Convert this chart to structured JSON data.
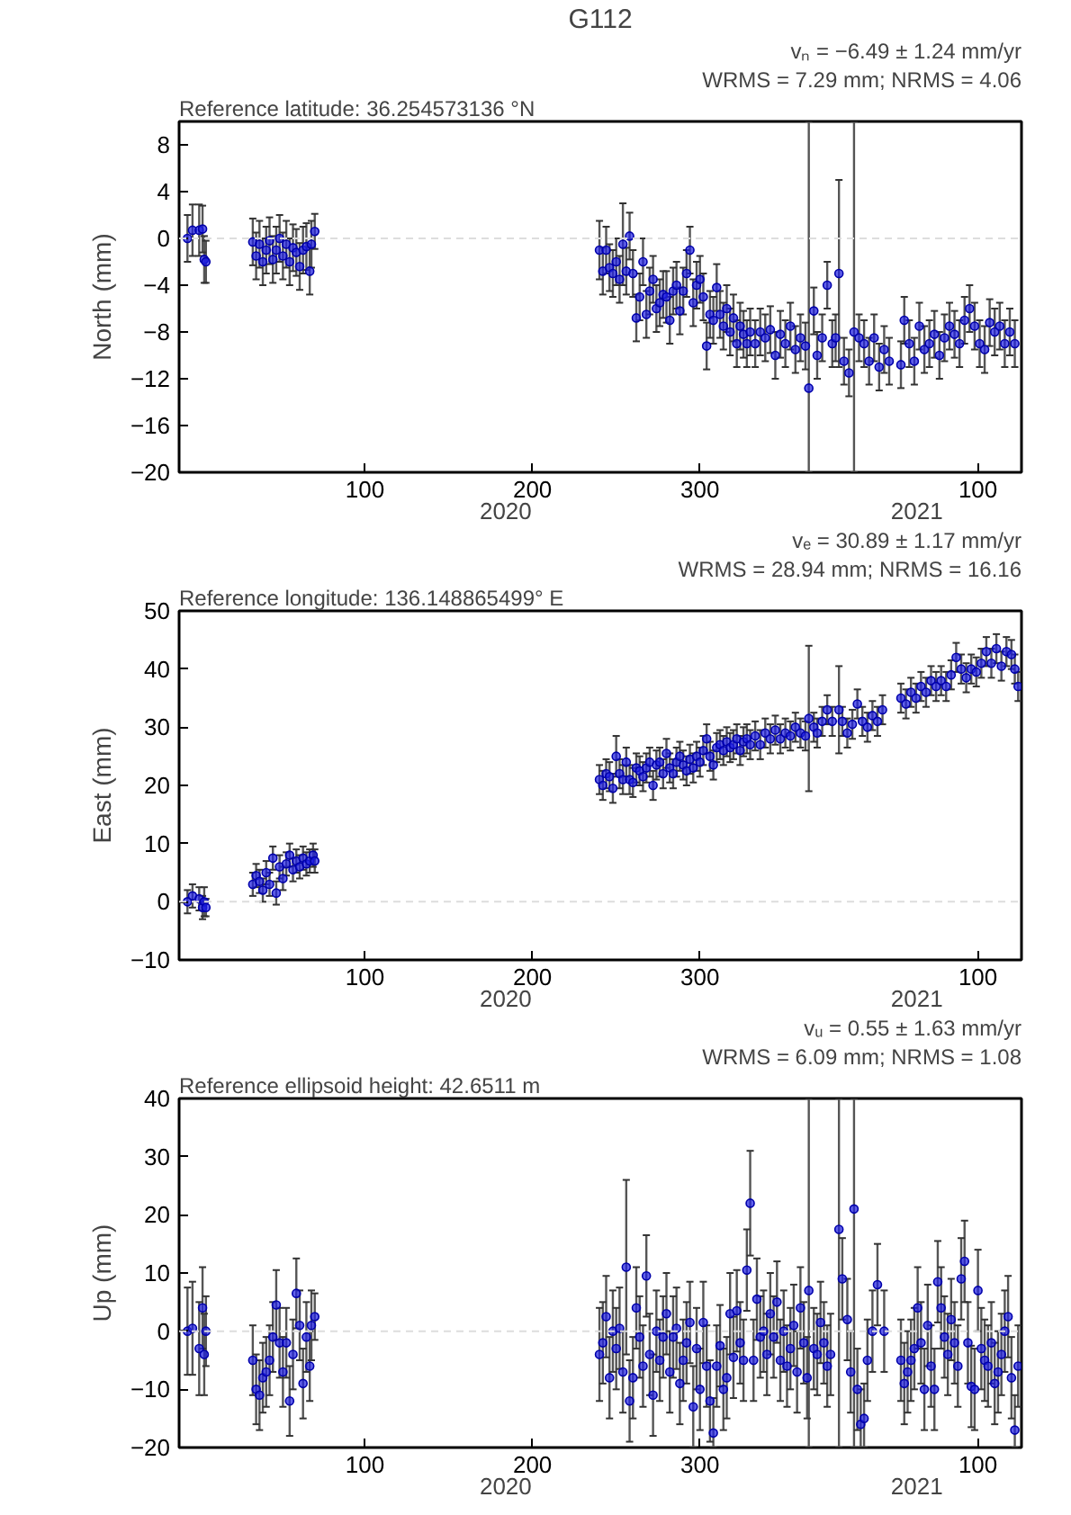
{
  "chart_data": [
    {
      "type": "scatter",
      "title": "G112",
      "ylabel": "North (mm)",
      "color": "#1f1fe6",
      "marker": "circle",
      "grid": false,
      "annotations": [
        "Reference latitude: 36.254573136 °N",
        "vₙ = −6.49 ± 1.24 mm/yr",
        "WRMS = 7.29 mm; NRMS = 4.06",
        "2020",
        "2021"
      ],
      "xlim": [
        "2019-12-20",
        "2021-05-06"
      ],
      "xticks": [
        {
          "value": "2020-04-09",
          "label": "100"
        },
        {
          "value": "2020-07-18",
          "label": "200"
        },
        {
          "value": "2020-10-26",
          "label": "300"
        },
        {
          "value": "2021-04-10",
          "label": "100"
        }
      ],
      "ylim": [
        -20,
        10
      ],
      "yticks": [
        -20,
        -16,
        -12,
        -8,
        -4,
        0,
        4,
        8
      ],
      "ref_lines": [
        {
          "axis": "y",
          "value": 0,
          "color": "#dddddd",
          "line_style": "dashed"
        }
      ],
      "x": [
        "2019-12-25",
        "2019-12-28",
        "2020-01-01",
        "2020-01-03",
        "2020-01-04",
        "2020-01-05",
        "2020-02-02",
        "2020-02-04",
        "2020-02-06",
        "2020-02-08",
        "2020-02-10",
        "2020-02-12",
        "2020-02-14",
        "2020-02-16",
        "2020-02-18",
        "2020-02-20",
        "2020-02-22",
        "2020-02-24",
        "2020-02-26",
        "2020-02-28",
        "2020-03-01",
        "2020-03-03",
        "2020-03-05",
        "2020-03-07",
        "2020-03-08",
        "2020-03-10",
        "2020-08-27",
        "2020-08-29",
        "2020-08-31",
        "2020-09-02",
        "2020-09-04",
        "2020-09-06",
        "2020-09-08",
        "2020-09-10",
        "2020-09-12",
        "2020-09-14",
        "2020-09-16",
        "2020-09-18",
        "2020-09-20",
        "2020-09-22",
        "2020-09-24",
        "2020-09-26",
        "2020-09-28",
        "2020-09-30",
        "2020-10-02",
        "2020-10-04",
        "2020-10-06",
        "2020-10-08",
        "2020-10-10",
        "2020-10-12",
        "2020-10-14",
        "2020-10-16",
        "2020-10-18",
        "2020-10-20",
        "2020-10-22",
        "2020-10-24",
        "2020-10-26",
        "2020-10-28",
        "2020-10-30",
        "2020-11-01",
        "2020-11-03",
        "2020-11-05",
        "2020-11-07",
        "2020-11-09",
        "2020-11-11",
        "2020-11-13",
        "2020-11-15",
        "2020-11-17",
        "2020-11-19",
        "2020-11-21",
        "2020-11-23",
        "2020-11-25",
        "2020-11-28",
        "2020-12-01",
        "2020-12-04",
        "2020-12-07",
        "2020-12-10",
        "2020-12-13",
        "2020-12-16",
        "2020-12-19",
        "2020-12-22",
        "2020-12-25",
        "2020-12-28",
        "2020-12-30",
        "2021-01-02",
        "2021-01-04",
        "2021-01-07",
        "2021-01-10",
        "2021-01-13",
        "2021-01-15",
        "2021-01-17",
        "2021-01-20",
        "2021-01-23",
        "2021-01-26",
        "2021-01-29",
        "2021-02-01",
        "2021-02-04",
        "2021-02-07",
        "2021-02-10",
        "2021-02-13",
        "2021-02-16",
        "2021-02-23",
        "2021-02-25",
        "2021-02-28",
        "2021-03-03",
        "2021-03-06",
        "2021-03-09",
        "2021-03-12",
        "2021-03-15",
        "2021-03-18",
        "2021-03-21",
        "2021-03-24",
        "2021-03-27",
        "2021-03-30",
        "2021-04-02",
        "2021-04-05",
        "2021-04-08",
        "2021-04-11",
        "2021-04-14",
        "2021-04-17",
        "2021-04-20",
        "2021-04-23",
        "2021-04-26",
        "2021-04-29",
        "2021-05-02"
      ],
      "values": [
        0,
        0.7,
        0.7,
        0.8,
        -1.8,
        -2,
        -0.3,
        -1.5,
        -0.5,
        -2,
        -1,
        -0.2,
        -1.8,
        -1,
        0,
        -1.5,
        -0.5,
        -2,
        -0.8,
        -1.2,
        -2.4,
        -1,
        -0.7,
        -2.8,
        -0.5,
        0.6,
        -1,
        -2.8,
        -1,
        -2.5,
        -3,
        -2,
        -3.5,
        -0.5,
        -2.8,
        0.2,
        -3,
        -6.8,
        -5,
        -2,
        -6.5,
        -4.5,
        -3.5,
        -6,
        -5.5,
        -4.8,
        -5,
        -7,
        -4.5,
        -4,
        -6.2,
        -4.5,
        -3,
        -1,
        -5.5,
        -4,
        -3.5,
        -5,
        -9.2,
        -6.5,
        -7,
        -4.2,
        -6.5,
        -7.5,
        -6,
        -8,
        -6.8,
        -9,
        -7.5,
        -8.2,
        -9,
        -8,
        -9,
        -8,
        -8.5,
        -7.8,
        -10,
        -8.2,
        -9,
        -7.5,
        -9.5,
        -8.5,
        -9.2,
        -12.8,
        -6.2,
        -10,
        -8.5,
        -4,
        -9,
        -8.5,
        -3,
        -10.5,
        -11.5,
        -8,
        -8.5,
        -9,
        -10.5,
        -8.5,
        -11,
        -9.5,
        -10.5,
        -10.8,
        -7,
        -9,
        -10.5,
        -7.5,
        -9.5,
        -9,
        -8.2,
        -10,
        -8.5,
        -7.5,
        -8.2,
        -9,
        -7,
        -6,
        -7.5,
        -9,
        -9.5,
        -7.2,
        -8,
        -7.5,
        -9,
        -8,
        -9
      ],
      "errors": [
        2,
        2.2,
        2.2,
        2,
        2,
        1.8,
        2,
        2,
        2,
        2,
        2,
        2,
        2,
        2,
        2,
        2,
        2,
        2,
        2,
        2,
        2,
        2,
        2,
        2,
        2,
        1.5,
        2.5,
        2,
        2,
        2,
        2,
        2,
        2,
        3.5,
        2,
        2,
        2,
        2,
        2,
        2,
        2,
        2,
        2,
        2,
        2,
        2,
        2.2,
        2,
        2,
        2,
        2,
        2,
        2,
        2,
        2,
        2,
        2,
        2,
        2,
        2,
        2,
        2,
        2,
        2,
        2,
        2,
        2,
        2,
        2,
        2,
        2,
        2,
        2,
        2,
        2,
        2,
        2,
        2,
        2,
        2,
        2,
        2,
        2,
        [
          -20,
          10
        ],
        2,
        2,
        2,
        2,
        2,
        2,
        8,
        2,
        2,
        [
          -20,
          10
        ],
        2,
        2,
        2,
        2,
        2,
        2,
        2,
        2,
        2,
        2,
        2,
        2,
        2,
        2,
        2,
        2,
        2,
        2,
        2,
        2,
        2,
        2,
        2,
        2,
        2,
        2,
        2,
        2,
        2,
        2,
        2
      ]
    },
    {
      "type": "scatter",
      "ylabel": "East (mm)",
      "color": "#1f1fe6",
      "marker": "circle",
      "grid": false,
      "annotations": [
        "Reference longitude: 136.148865499° E",
        "vₑ = 30.89 ± 1.17 mm/yr",
        "WRMS = 28.94 mm; NRMS = 16.16",
        "2020",
        "2021"
      ],
      "xlim": [
        "2019-12-20",
        "2021-05-06"
      ],
      "xticks": [
        {
          "value": "2020-04-09",
          "label": "100"
        },
        {
          "value": "2020-07-18",
          "label": "200"
        },
        {
          "value": "2020-10-26",
          "label": "300"
        },
        {
          "value": "2021-04-10",
          "label": "100"
        }
      ],
      "ylim": [
        -10,
        50
      ],
      "yticks": [
        -10,
        0,
        10,
        20,
        30,
        40,
        50
      ],
      "ref_lines": [
        {
          "axis": "y",
          "value": 0,
          "color": "#dddddd",
          "line_style": "dashed"
        }
      ],
      "x": [
        "2019-12-25",
        "2019-12-28",
        "2020-01-01",
        "2020-01-03",
        "2020-01-04",
        "2020-01-05",
        "2020-02-02",
        "2020-02-04",
        "2020-02-06",
        "2020-02-08",
        "2020-02-10",
        "2020-02-12",
        "2020-02-14",
        "2020-02-16",
        "2020-02-18",
        "2020-02-20",
        "2020-02-22",
        "2020-02-24",
        "2020-02-26",
        "2020-02-28",
        "2020-03-01",
        "2020-03-03",
        "2020-03-05",
        "2020-03-07",
        "2020-03-09",
        "2020-03-10",
        "2020-08-27",
        "2020-08-29",
        "2020-08-31",
        "2020-09-02",
        "2020-09-04",
        "2020-09-06",
        "2020-09-08",
        "2020-09-10",
        "2020-09-12",
        "2020-09-14",
        "2020-09-16",
        "2020-09-18",
        "2020-09-20",
        "2020-09-22",
        "2020-09-24",
        "2020-09-26",
        "2020-09-28",
        "2020-09-30",
        "2020-10-02",
        "2020-10-04",
        "2020-10-06",
        "2020-10-08",
        "2020-10-10",
        "2020-10-12",
        "2020-10-14",
        "2020-10-16",
        "2020-10-18",
        "2020-10-20",
        "2020-10-22",
        "2020-10-24",
        "2020-10-26",
        "2020-10-28",
        "2020-10-30",
        "2020-11-01",
        "2020-11-03",
        "2020-11-05",
        "2020-11-07",
        "2020-11-09",
        "2020-11-11",
        "2020-11-13",
        "2020-11-15",
        "2020-11-17",
        "2020-11-19",
        "2020-11-21",
        "2020-11-23",
        "2020-11-25",
        "2020-11-28",
        "2020-12-01",
        "2020-12-04",
        "2020-12-07",
        "2020-12-10",
        "2020-12-13",
        "2020-12-16",
        "2020-12-19",
        "2020-12-22",
        "2020-12-25",
        "2020-12-28",
        "2020-12-30",
        "2021-01-02",
        "2021-01-04",
        "2021-01-07",
        "2021-01-10",
        "2021-01-13",
        "2021-01-17",
        "2021-01-19",
        "2021-01-22",
        "2021-01-25",
        "2021-01-28",
        "2021-01-31",
        "2021-02-03",
        "2021-02-06",
        "2021-02-09",
        "2021-02-12",
        "2021-02-23",
        "2021-02-26",
        "2021-03-01",
        "2021-03-04",
        "2021-03-07",
        "2021-03-10",
        "2021-03-13",
        "2021-03-16",
        "2021-03-19",
        "2021-03-22",
        "2021-03-25",
        "2021-03-28",
        "2021-03-31",
        "2021-04-03",
        "2021-04-06",
        "2021-04-09",
        "2021-04-12",
        "2021-04-15",
        "2021-04-18",
        "2021-04-21",
        "2021-04-24",
        "2021-04-27",
        "2021-04-30",
        "2021-05-02",
        "2021-05-04"
      ],
      "values": [
        0,
        1,
        0.5,
        -1,
        0,
        -1,
        3,
        4.5,
        3.5,
        2,
        5,
        3,
        7.5,
        1.5,
        6,
        4,
        6.5,
        8,
        5.5,
        7,
        6,
        7.5,
        6.5,
        7,
        8,
        7,
        21,
        20,
        22,
        21.5,
        19.5,
        25,
        22,
        21,
        24,
        21,
        20.5,
        23,
        22.5,
        21.5,
        23,
        24,
        20,
        23.5,
        24,
        22,
        25.5,
        23,
        22,
        24,
        25,
        23.5,
        22.5,
        24.5,
        23,
        25,
        24,
        26,
        28,
        25,
        23.5,
        26.5,
        27,
        26,
        27.5,
        26.5,
        27,
        28,
        26,
        27.5,
        28,
        27,
        28.5,
        27,
        29,
        28,
        29.5,
        28,
        29,
        28.5,
        30,
        29,
        28.5,
        31.5,
        30,
        29,
        31,
        33,
        31,
        33,
        31,
        29,
        30.5,
        34,
        31,
        30,
        32,
        31,
        33,
        35,
        34,
        36,
        35,
        37,
        36,
        38,
        37,
        38,
        37,
        39,
        42,
        40,
        38.5,
        40,
        39.5,
        41,
        43,
        41,
        43.5,
        40.5,
        43,
        42.5,
        40,
        37
      ],
      "errors": [
        2,
        2,
        2,
        2,
        2.5,
        1.5,
        2,
        2,
        2,
        2,
        2,
        2,
        2,
        2,
        2,
        2,
        2,
        2,
        2,
        2,
        2,
        2,
        2,
        2,
        2,
        2,
        2.5,
        2.5,
        2.5,
        2.5,
        2.5,
        3.5,
        2.5,
        2.5,
        2.5,
        2.5,
        2.5,
        2.5,
        2.5,
        2.5,
        2.5,
        2.5,
        2.5,
        2.5,
        2.5,
        2.5,
        2.5,
        2.5,
        2.5,
        2.5,
        2.5,
        2.5,
        2.5,
        2.5,
        2.5,
        2.5,
        2.5,
        2.5,
        2.5,
        2.5,
        2.5,
        2.5,
        2.5,
        2.5,
        2.5,
        2.5,
        2.5,
        2.5,
        2.5,
        2.5,
        2.5,
        2.5,
        2.5,
        2.5,
        2.5,
        2.5,
        2.5,
        2.5,
        2.5,
        2.5,
        2.5,
        2.5,
        2.5,
        12.5,
        2.5,
        2.5,
        2.5,
        2.5,
        2.5,
        7.5,
        2.5,
        2.5,
        2.5,
        2.5,
        2.5,
        2.5,
        2.5,
        2.5,
        2.5,
        2.5,
        2.5,
        2.5,
        2.5,
        2.5,
        2.5,
        2.5,
        2.5,
        2.5,
        2.5,
        2.5,
        2.5,
        2.5,
        2.5,
        2.5,
        2.5,
        2.5,
        2.5,
        2.5,
        2.5,
        2.5,
        2.5,
        2.5,
        2.5,
        2.5
      ]
    },
    {
      "type": "scatter",
      "ylabel": "Up (mm)",
      "color": "#1f1fe6",
      "marker": "circle",
      "grid": false,
      "annotations": [
        "Reference ellipsoid height: 42.6511 m",
        "vᵤ = 0.55 ± 1.63 mm/yr",
        "WRMS = 6.09 mm; NRMS = 1.08",
        "2020",
        "2021"
      ],
      "xlim": [
        "2019-12-20",
        "2021-05-06"
      ],
      "xticks": [
        {
          "value": "2020-04-09",
          "label": "100"
        },
        {
          "value": "2020-07-18",
          "label": "200"
        },
        {
          "value": "2020-10-26",
          "label": "300"
        },
        {
          "value": "2021-04-10",
          "label": "100"
        }
      ],
      "ylim": [
        -20,
        40
      ],
      "yticks": [
        -20,
        -10,
        0,
        10,
        20,
        30,
        40
      ],
      "ref_lines": [
        {
          "axis": "y",
          "value": 0,
          "color": "#dddddd",
          "line_style": "dashed"
        }
      ],
      "x": [
        "2019-12-25",
        "2019-12-28",
        "2020-01-01",
        "2020-01-03",
        "2020-01-04",
        "2020-01-05",
        "2020-02-02",
        "2020-02-04",
        "2020-02-06",
        "2020-02-08",
        "2020-02-10",
        "2020-02-12",
        "2020-02-14",
        "2020-02-16",
        "2020-02-18",
        "2020-02-20",
        "2020-02-22",
        "2020-02-24",
        "2020-02-26",
        "2020-02-28",
        "2020-03-01",
        "2020-03-03",
        "2020-03-05",
        "2020-03-07",
        "2020-03-08",
        "2020-03-10",
        "2020-08-27",
        "2020-08-29",
        "2020-08-31",
        "2020-09-02",
        "2020-09-04",
        "2020-09-06",
        "2020-09-08",
        "2020-09-10",
        "2020-09-12",
        "2020-09-14",
        "2020-09-16",
        "2020-09-18",
        "2020-09-20",
        "2020-09-22",
        "2020-09-24",
        "2020-09-26",
        "2020-09-28",
        "2020-09-30",
        "2020-10-02",
        "2020-10-04",
        "2020-10-06",
        "2020-10-08",
        "2020-10-10",
        "2020-10-12",
        "2020-10-14",
        "2020-10-16",
        "2020-10-18",
        "2020-10-20",
        "2020-10-22",
        "2020-10-24",
        "2020-10-26",
        "2020-10-28",
        "2020-10-30",
        "2020-11-01",
        "2020-11-03",
        "2020-11-05",
        "2020-11-07",
        "2020-11-09",
        "2020-11-11",
        "2020-11-13",
        "2020-11-15",
        "2020-11-17",
        "2020-11-19",
        "2020-11-21",
        "2020-11-23",
        "2020-11-25",
        "2020-11-27",
        "2020-11-29",
        "2020-12-01",
        "2020-12-03",
        "2020-12-05",
        "2020-12-07",
        "2020-12-09",
        "2020-12-11",
        "2020-12-13",
        "2020-12-15",
        "2020-12-17",
        "2020-12-19",
        "2020-12-21",
        "2020-12-23",
        "2020-12-25",
        "2020-12-27",
        "2020-12-29",
        "2020-12-30",
        "2021-01-02",
        "2021-01-04",
        "2021-01-06",
        "2021-01-08",
        "2021-01-10",
        "2021-01-12",
        "2021-01-17",
        "2021-01-19",
        "2021-01-22",
        "2021-01-24",
        "2021-01-26",
        "2021-01-28",
        "2021-01-30",
        "2021-02-01",
        "2021-02-03",
        "2021-02-06",
        "2021-02-09",
        "2021-02-13",
        "2021-02-23",
        "2021-02-25",
        "2021-02-27",
        "2021-03-01",
        "2021-03-03",
        "2021-03-05",
        "2021-03-07",
        "2021-03-09",
        "2021-03-11",
        "2021-03-13",
        "2021-03-15",
        "2021-03-17",
        "2021-03-19",
        "2021-03-21",
        "2021-03-23",
        "2021-03-25",
        "2021-03-27",
        "2021-03-29",
        "2021-03-31",
        "2021-04-02",
        "2021-04-04",
        "2021-04-06",
        "2021-04-08",
        "2021-04-10",
        "2021-04-12",
        "2021-04-14",
        "2021-04-16",
        "2021-04-18",
        "2021-04-20",
        "2021-04-22",
        "2021-04-24",
        "2021-04-26",
        "2021-04-28",
        "2021-04-30",
        "2021-05-02",
        "2021-05-04"
      ],
      "values": [
        0,
        0.5,
        -3,
        4,
        -4,
        0,
        -5,
        -10,
        -11,
        -8,
        -7,
        -5,
        -1,
        4.5,
        -2,
        -7,
        -2,
        -12,
        -4,
        6.5,
        1,
        -9,
        -1,
        -6,
        1,
        2.5,
        -4,
        -2,
        2.5,
        -8,
        0,
        -3,
        0.5,
        -7,
        11,
        -12,
        -8,
        4,
        -1,
        -6,
        9.5,
        -4,
        -11,
        0,
        -5,
        -1,
        3,
        -7,
        -1,
        0.5,
        -9,
        -5,
        -2,
        1.5,
        -13,
        -3,
        -10,
        1.5,
        -6,
        -12,
        -17.5,
        -6,
        -2.5,
        -10,
        -8,
        3,
        -4.5,
        3.5,
        -2,
        -5,
        10.5,
        22,
        -5,
        5.5,
        -1,
        0,
        -4,
        3,
        -1,
        5,
        -5,
        0,
        -6,
        -3,
        1,
        -7,
        4,
        -2,
        -8,
        7,
        -3,
        -4,
        1.5,
        -2,
        -6,
        -4,
        17.5,
        9,
        2,
        -7,
        21,
        -10,
        -16,
        -15,
        -5,
        0,
        8,
        0,
        -5,
        -9,
        -7,
        -5,
        -3,
        4,
        -2,
        -10,
        1,
        -6,
        -10,
        8.5,
        4,
        -1,
        -4,
        2,
        -2,
        -6,
        9,
        12,
        -2,
        -9.5,
        -10,
        7,
        -3,
        -5,
        -6,
        -2,
        -9,
        -7,
        -4,
        0,
        2.5,
        -8,
        -17,
        -6
      ],
      "errors": [
        7.5,
        8,
        8,
        7,
        7,
        6,
        6,
        6,
        6,
        6,
        6,
        6,
        6,
        6,
        6,
        6,
        6,
        6,
        6,
        6,
        6,
        6,
        6,
        6,
        6,
        4,
        8,
        7,
        7,
        7,
        7,
        7,
        7,
        7,
        15,
        7,
        7,
        7,
        7,
        7,
        7,
        7,
        7,
        7,
        7,
        7,
        7,
        7,
        7,
        7,
        7,
        7,
        7,
        7,
        7,
        7,
        7,
        7,
        7,
        7,
        [
          -20,
          -11.5
        ],
        7,
        7,
        7,
        7,
        7,
        7,
        7,
        7,
        7,
        7,
        9,
        7,
        7,
        7,
        7,
        7,
        7,
        7,
        7,
        7,
        7,
        7,
        7,
        7,
        7,
        7,
        7,
        7,
        [
          -20,
          40
        ],
        7,
        7,
        7,
        7,
        7,
        7,
        [
          -20,
          40
        ],
        7,
        7,
        7,
        [
          -20,
          40
        ],
        7,
        [
          -20,
          -10
        ],
        [
          -20,
          -9
        ],
        7,
        7,
        7,
        7,
        7,
        7,
        7,
        7,
        7,
        7,
        7,
        7,
        7,
        7,
        7,
        7,
        7,
        7,
        7,
        7,
        7,
        7,
        7,
        7,
        7,
        7,
        7,
        7,
        7,
        7,
        7,
        7,
        7,
        7,
        7,
        7,
        7,
        7,
        [
          -20,
          -11
        ],
        7
      ]
    }
  ]
}
